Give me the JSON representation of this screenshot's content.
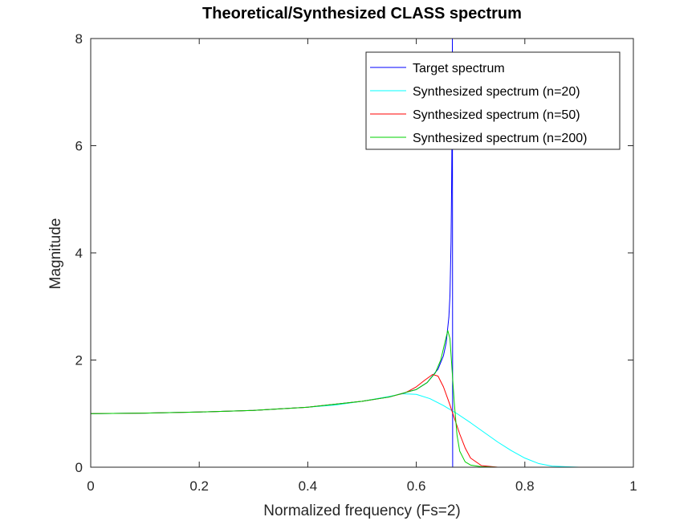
{
  "chart_data": {
    "type": "line",
    "title": "Theoretical/Synthesized CLASS spectrum",
    "xlabel": "Normalized frequency (Fs=2)",
    "ylabel": "Magnitude",
    "xlim": [
      0,
      1
    ],
    "ylim": [
      0,
      8
    ],
    "xticks": [
      0,
      0.2,
      0.4,
      0.6,
      0.8,
      1
    ],
    "xtick_labels": [
      "0",
      "0.2",
      "0.4",
      "0.6",
      "0.8",
      "1"
    ],
    "yticks": [
      0,
      2,
      4,
      6,
      8
    ],
    "ytick_labels": [
      "0",
      "2",
      "4",
      "6",
      "8"
    ],
    "grid": false,
    "legend_position": "top-right",
    "series": [
      {
        "name": "Target spectrum",
        "color": "#0000ff",
        "x": [
          0,
          0.1,
          0.2,
          0.3,
          0.4,
          0.5,
          0.55,
          0.6,
          0.62,
          0.64,
          0.65,
          0.655,
          0.66,
          0.662,
          0.664,
          0.665,
          0.666,
          0.6665,
          0.667,
          0.668,
          0.67,
          0.7,
          0.8,
          1
        ],
        "y": [
          1.0,
          1.01,
          1.03,
          1.06,
          1.12,
          1.23,
          1.31,
          1.45,
          1.58,
          1.83,
          2.08,
          2.32,
          2.8,
          3.2,
          4.2,
          5.2,
          6.5,
          8.0,
          0,
          0,
          0,
          0,
          0,
          0
        ]
      },
      {
        "name": "Synthesized spectrum (n=20)",
        "color": "#00ffff",
        "x": [
          0,
          0.1,
          0.2,
          0.3,
          0.4,
          0.45,
          0.5,
          0.55,
          0.575,
          0.6,
          0.625,
          0.65,
          0.675,
          0.7,
          0.725,
          0.75,
          0.775,
          0.8,
          0.825,
          0.85,
          0.875,
          0.9,
          1
        ],
        "y": [
          1.0,
          1.01,
          1.03,
          1.06,
          1.12,
          1.16,
          1.23,
          1.32,
          1.37,
          1.36,
          1.28,
          1.15,
          1.0,
          0.83,
          0.65,
          0.47,
          0.31,
          0.17,
          0.07,
          0.02,
          0.01,
          0.0,
          0.0
        ]
      },
      {
        "name": "Synthesized spectrum (n=50)",
        "color": "#ff0000",
        "x": [
          0,
          0.1,
          0.2,
          0.3,
          0.4,
          0.5,
          0.55,
          0.58,
          0.6,
          0.615,
          0.63,
          0.64,
          0.65,
          0.66,
          0.67,
          0.68,
          0.69,
          0.7,
          0.72,
          0.75,
          0.8,
          1
        ],
        "y": [
          1.0,
          1.01,
          1.03,
          1.06,
          1.12,
          1.23,
          1.31,
          1.39,
          1.5,
          1.62,
          1.73,
          1.7,
          1.5,
          1.22,
          0.92,
          0.62,
          0.36,
          0.17,
          0.03,
          0.0,
          0.0,
          0.0
        ]
      },
      {
        "name": "Synthesized spectrum (n=200)",
        "color": "#00d000",
        "x": [
          0,
          0.1,
          0.2,
          0.3,
          0.4,
          0.5,
          0.55,
          0.6,
          0.62,
          0.635,
          0.645,
          0.652,
          0.658,
          0.662,
          0.666,
          0.67,
          0.675,
          0.68,
          0.69,
          0.7,
          0.72,
          0.75,
          1
        ],
        "y": [
          1.0,
          1.01,
          1.03,
          1.06,
          1.12,
          1.23,
          1.31,
          1.45,
          1.58,
          1.76,
          2.0,
          2.3,
          2.55,
          2.4,
          1.8,
          1.2,
          0.6,
          0.3,
          0.1,
          0.04,
          0.01,
          0.0,
          0.0
        ]
      }
    ]
  }
}
